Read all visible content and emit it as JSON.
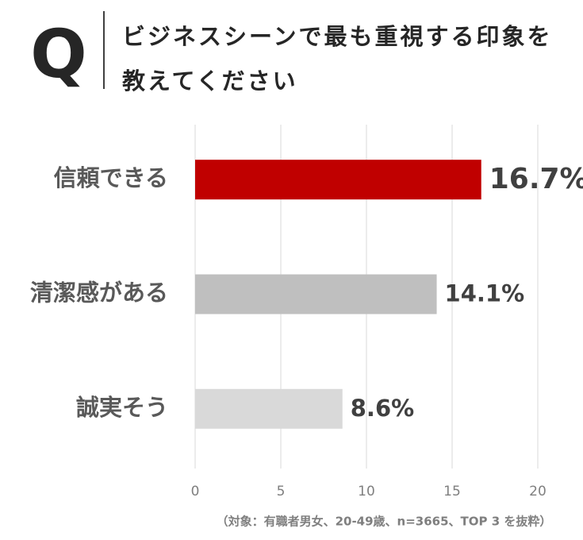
{
  "header": {
    "mark": "Q"
  },
  "chart_data": {
    "type": "bar",
    "orientation": "horizontal",
    "title": "ビジネスシーンで最も重視する印象を教えてください",
    "categories": [
      "信頼できる",
      "清潔感がある",
      "誠実そう"
    ],
    "values": [
      16.7,
      14.1,
      8.6
    ],
    "value_labels": [
      "16.7%",
      "14.1%",
      "8.6%"
    ],
    "colors": [
      "#c00000",
      "#bfbfbf",
      "#d9d9d9"
    ],
    "xlim": [
      0,
      20
    ],
    "xticks": [
      0,
      5,
      10,
      15,
      20
    ],
    "grid": true,
    "note": "（対象：有職者男女、20-49歳、n=3665、TOP 3 を抜粋）"
  }
}
